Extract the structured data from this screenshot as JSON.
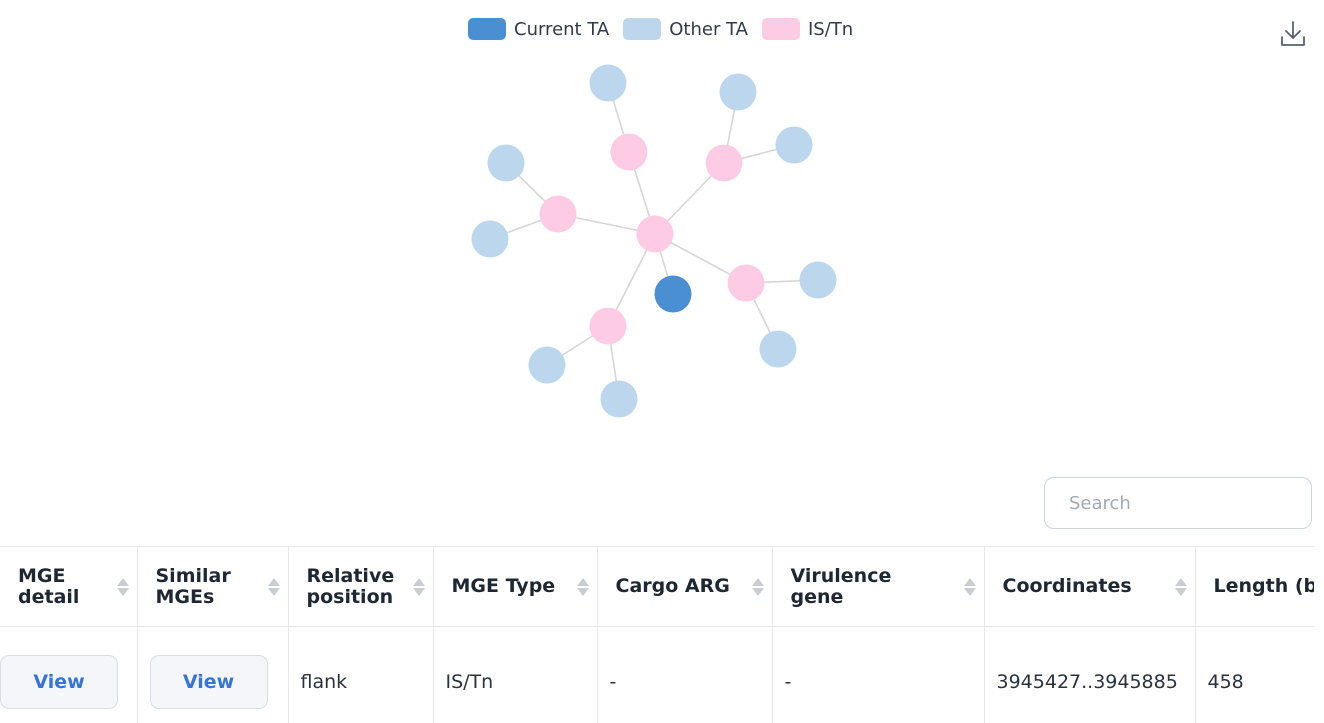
{
  "legend": {
    "items": [
      {
        "label": "Current TA",
        "color": "#4a8fd1"
      },
      {
        "label": "Other TA",
        "color": "#bcd6ed"
      },
      {
        "label": "IS/Tn",
        "color": "#fdcbe3"
      }
    ]
  },
  "toolbar": {
    "download_icon": "download-icon"
  },
  "search": {
    "placeholder": "Search",
    "value": ""
  },
  "table": {
    "headers": [
      "MGE detail",
      "Similar MGEs",
      "Relative position",
      "MGE Type",
      "Cargo ARG",
      "Virulence gene",
      "Coordinates",
      "Length (bp)"
    ],
    "rows": [
      {
        "mge_detail": "View",
        "similar_mges": "View",
        "relative_position": "flank",
        "mge_type": "IS/Tn",
        "cargo_arg": "-",
        "virulence_gene": "-",
        "coordinates": "3945427..3945885",
        "length": "458"
      }
    ]
  }
}
